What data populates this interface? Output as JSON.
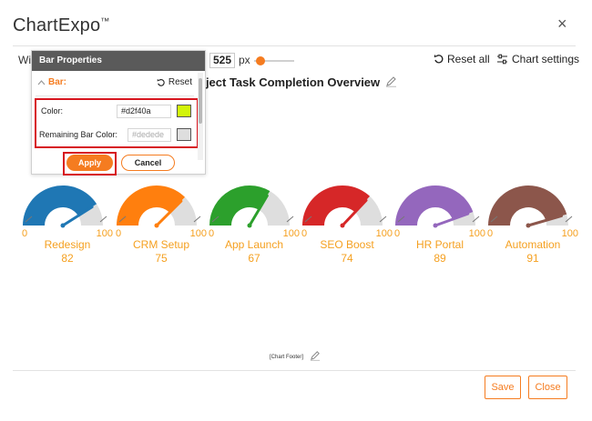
{
  "app": {
    "title": "ChartExpo",
    "trademark": "™",
    "close_symbol": "×"
  },
  "toolbar": {
    "width_label_partial": "Wi",
    "width_value": "525",
    "width_unit": "px",
    "reset_all_label": "Reset all",
    "chart_settings_label": "Chart settings",
    "slider_fraction": 0.17
  },
  "chart": {
    "title_visible": "oject Task Completion Overview",
    "footer": "[Chart Footer]"
  },
  "panel": {
    "header": "Bar Properties",
    "section_label": "Bar:",
    "reset_label": "Reset",
    "color_label": "Color:",
    "color_value": "#d2f40a",
    "remaining_label": "Remaining Bar Color:",
    "remaining_placeholder": "#dedede",
    "apply_label": "Apply",
    "cancel_label": "Cancel"
  },
  "actions": {
    "save_label": "Save",
    "close_label": "Close"
  },
  "colors": {
    "accent": "#f57c20",
    "highlight": "#d7141e",
    "label": "#f5a020",
    "remaining": "#dedede",
    "color_swatch": "#d2f40a",
    "remaining_swatch": "#dedede"
  },
  "chart_data": {
    "type": "gauge",
    "min": 0,
    "max": 100,
    "min_label": "0",
    "max_label": "100",
    "gauges": [
      {
        "name": "Redesign",
        "value": 82,
        "value_label": "82",
        "color": "#1f77b4"
      },
      {
        "name": "CRM Setup",
        "value": 75,
        "value_label": "75",
        "color": "#ff7f0e"
      },
      {
        "name": "App Launch",
        "value": 67,
        "value_label": "67",
        "color": "#2ca02c"
      },
      {
        "name": "SEO Boost",
        "value": 74,
        "value_label": "74",
        "color": "#d62728"
      },
      {
        "name": "HR Portal",
        "value": 89,
        "value_label": "89",
        "color": "#9467bd"
      },
      {
        "name": "Automation",
        "value": 91,
        "value_label": "91",
        "color": "#8c564b"
      }
    ]
  }
}
